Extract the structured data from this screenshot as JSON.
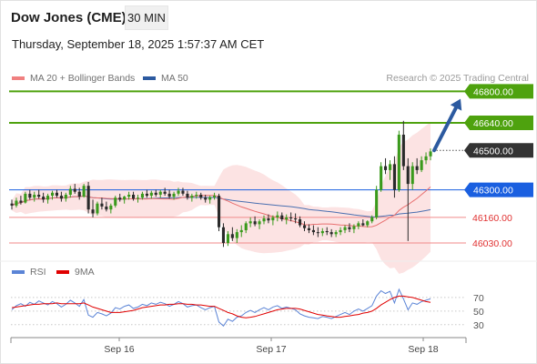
{
  "header": {
    "title": "Dow Jones (CME)",
    "timeframe": "30 MIN",
    "timestamp": "Thursday, September 18, 2025 1:57:37 AM CET"
  },
  "legend": {
    "items": [
      {
        "label": "MA 20 + Bollinger Bands",
        "color": "#f08080"
      },
      {
        "label": "MA 50",
        "color": "#2c5aa0"
      }
    ],
    "credit": "Research © 2025 Trading Central"
  },
  "rsi_legend": {
    "items": [
      {
        "label": "RSI",
        "color": "#5b84d6"
      },
      {
        "label": "9MA",
        "color": "#e00000"
      }
    ]
  },
  "chart_data": [
    {
      "type": "candlestick",
      "x_labels": [
        "Sep 16",
        "Sep 17",
        "Sep 18"
      ],
      "ylim": [
        45970,
        46820
      ],
      "levels": [
        {
          "value": 46800,
          "label": "46800.00",
          "kind": "resistance",
          "color": "#4ea20e"
        },
        {
          "value": 46640,
          "label": "46640.00",
          "kind": "resistance",
          "color": "#4ea20e"
        },
        {
          "value": 46500,
          "label": "46500.00",
          "kind": "last-price",
          "color": "#333333"
        },
        {
          "value": 46300,
          "label": "46300.00",
          "kind": "pivot",
          "color": "#1a5fe0"
        },
        {
          "value": 46160,
          "label": "46160.00",
          "kind": "support",
          "color": "#e84040"
        },
        {
          "value": 46030,
          "label": "46030.00",
          "kind": "support",
          "color": "#e84040"
        }
      ],
      "forecast_arrow": {
        "from": 46500,
        "to": 46780,
        "direction": "up",
        "color": "#2c5aa0"
      },
      "candles": [
        [
          46230,
          46250,
          46200,
          46220
        ],
        [
          46220,
          46260,
          46210,
          46245
        ],
        [
          46245,
          46270,
          46225,
          46235
        ],
        [
          46235,
          46290,
          46230,
          46280
        ],
        [
          46280,
          46300,
          46250,
          46260
        ],
        [
          46260,
          46290,
          46240,
          46275
        ],
        [
          46275,
          46300,
          46255,
          46265
        ],
        [
          46265,
          46285,
          46235,
          46250
        ],
        [
          46250,
          46280,
          46230,
          46270
        ],
        [
          46270,
          46295,
          46250,
          46285
        ],
        [
          46285,
          46300,
          46260,
          46270
        ],
        [
          46270,
          46290,
          46240,
          46255
        ],
        [
          46255,
          46285,
          46240,
          46275
        ],
        [
          46275,
          46320,
          46260,
          46305
        ],
        [
          46305,
          46330,
          46280,
          46290
        ],
        [
          46290,
          46310,
          46250,
          46265
        ],
        [
          46265,
          46330,
          46260,
          46320
        ],
        [
          46320,
          46340,
          46180,
          46200
        ],
        [
          46200,
          46250,
          46160,
          46180
        ],
        [
          46180,
          46240,
          46170,
          46230
        ],
        [
          46230,
          46260,
          46200,
          46215
        ],
        [
          46215,
          46240,
          46190,
          46200
        ],
        [
          46200,
          46230,
          46180,
          46220
        ],
        [
          46220,
          46270,
          46210,
          46260
        ],
        [
          46260,
          46280,
          46240,
          46250
        ],
        [
          46250,
          46270,
          46230,
          46265
        ],
        [
          46265,
          46290,
          46250,
          46275
        ],
        [
          46275,
          46290,
          46245,
          46255
        ],
        [
          46255,
          46275,
          46235,
          46260
        ],
        [
          46260,
          46290,
          46250,
          46280
        ],
        [
          46280,
          46300,
          46260,
          46270
        ],
        [
          46270,
          46295,
          46255,
          46285
        ],
        [
          46285,
          46300,
          46265,
          46275
        ],
        [
          46275,
          46300,
          46260,
          46290
        ],
        [
          46290,
          46310,
          46270,
          46280
        ],
        [
          46280,
          46300,
          46255,
          46265
        ],
        [
          46265,
          46290,
          46250,
          46280
        ],
        [
          46280,
          46310,
          46270,
          46295
        ],
        [
          46295,
          46310,
          46270,
          46280
        ],
        [
          46280,
          46295,
          46250,
          46260
        ],
        [
          46260,
          46280,
          46240,
          46270
        ],
        [
          46270,
          46290,
          46255,
          46275
        ],
        [
          46275,
          46285,
          46250,
          46260
        ],
        [
          46260,
          46275,
          46235,
          46250
        ],
        [
          46250,
          46270,
          46230,
          46262
        ],
        [
          46262,
          46285,
          46250,
          46270
        ],
        [
          46270,
          46280,
          46090,
          46110
        ],
        [
          46110,
          46130,
          46010,
          46030
        ],
        [
          46030,
          46090,
          46015,
          46075
        ],
        [
          46075,
          46110,
          46040,
          46055
        ],
        [
          46055,
          46100,
          46030,
          46085
        ],
        [
          46085,
          46120,
          46060,
          46095
        ],
        [
          46095,
          46140,
          46080,
          46130
        ],
        [
          46130,
          46160,
          46110,
          46140
        ],
        [
          46140,
          46165,
          46115,
          46125
        ],
        [
          46125,
          46150,
          46100,
          46140
        ],
        [
          46140,
          46170,
          46125,
          46155
        ],
        [
          46155,
          46175,
          46130,
          46145
        ],
        [
          46145,
          46170,
          46120,
          46160
        ],
        [
          46160,
          46190,
          46140,
          46170
        ],
        [
          46170,
          46185,
          46140,
          46150
        ],
        [
          46150,
          46175,
          46125,
          46160
        ],
        [
          46160,
          46185,
          46140,
          46155
        ],
        [
          46155,
          46180,
          46130,
          46150
        ],
        [
          46150,
          46165,
          46110,
          46120
        ],
        [
          46120,
          46140,
          46090,
          46105
        ],
        [
          46105,
          46125,
          46080,
          46095
        ],
        [
          46095,
          46120,
          46070,
          46085
        ],
        [
          46085,
          46110,
          46060,
          46080
        ],
        [
          46080,
          46105,
          46065,
          46090
        ],
        [
          46090,
          46110,
          46070,
          46085
        ],
        [
          46085,
          46100,
          46060,
          46075
        ],
        [
          46075,
          46095,
          46060,
          46085
        ],
        [
          46085,
          46110,
          46070,
          46095
        ],
        [
          46095,
          46120,
          46080,
          46110
        ],
        [
          46110,
          46130,
          46085,
          46100
        ],
        [
          46100,
          46125,
          46080,
          46115
        ],
        [
          46115,
          46140,
          46100,
          46130
        ],
        [
          46130,
          46150,
          46115,
          46120
        ],
        [
          46120,
          46145,
          46110,
          46140
        ],
        [
          46140,
          46170,
          46130,
          46160
        ],
        [
          46160,
          46320,
          46150,
          46300
        ],
        [
          46300,
          46440,
          46290,
          46420
        ],
        [
          46420,
          46460,
          46380,
          46400
        ],
        [
          46400,
          46450,
          46350,
          46430
        ],
        [
          46430,
          46470,
          46260,
          46300
        ],
        [
          46300,
          46600,
          46290,
          46580
        ],
        [
          46580,
          46650,
          46400,
          46420
        ],
        [
          46420,
          46460,
          46040,
          46330
        ],
        [
          46330,
          46440,
          46300,
          46420
        ],
        [
          46420,
          46460,
          46380,
          46400
        ],
        [
          46400,
          46470,
          46390,
          46450
        ],
        [
          46450,
          46490,
          46430,
          46470
        ],
        [
          46470,
          46510,
          46450,
          46495
        ]
      ]
    },
    {
      "type": "line",
      "name": "RSI",
      "ylim": [
        15,
        90
      ],
      "y_ticks": [
        70,
        50,
        30
      ],
      "series": [
        {
          "name": "RSI",
          "color": "#5b84d6",
          "values": [
            52,
            58,
            61,
            57,
            63,
            60,
            65,
            62,
            59,
            64,
            61,
            56,
            60,
            66,
            62,
            57,
            67,
            44,
            41,
            48,
            46,
            43,
            47,
            55,
            53,
            57,
            59,
            54,
            56,
            60,
            58,
            62,
            60,
            63,
            61,
            57,
            60,
            64,
            61,
            56,
            58,
            59,
            55,
            52,
            55,
            57,
            34,
            28,
            38,
            35,
            41,
            43,
            48,
            51,
            48,
            52,
            55,
            52,
            56,
            58,
            54,
            56,
            54,
            52,
            46,
            43,
            41,
            40,
            39,
            42,
            41,
            39,
            42,
            45,
            48,
            45,
            50,
            53,
            50,
            54,
            58,
            72,
            80,
            76,
            79,
            62,
            82,
            68,
            52,
            62,
            60,
            64,
            66,
            68
          ]
        },
        {
          "name": "9MA",
          "color": "#e00000",
          "values": [
            55,
            56,
            57,
            58,
            59,
            60,
            60,
            61,
            61,
            61,
            62,
            61,
            61,
            61,
            61,
            61,
            62,
            59,
            56,
            54,
            52,
            50,
            48,
            48,
            48,
            49,
            50,
            51,
            53,
            55,
            56,
            57,
            58,
            59,
            59,
            60,
            60,
            61,
            61,
            60,
            60,
            59,
            59,
            58,
            57,
            57,
            54,
            51,
            48,
            46,
            43,
            41,
            40,
            41,
            42,
            44,
            46,
            48,
            50,
            52,
            53,
            54,
            54,
            54,
            53,
            51,
            49,
            47,
            45,
            44,
            43,
            42,
            41,
            41,
            42,
            43,
            44,
            45,
            47,
            48,
            50,
            54,
            59,
            63,
            67,
            70,
            72,
            72,
            71,
            70,
            68,
            66,
            64,
            63
          ]
        }
      ]
    }
  ]
}
